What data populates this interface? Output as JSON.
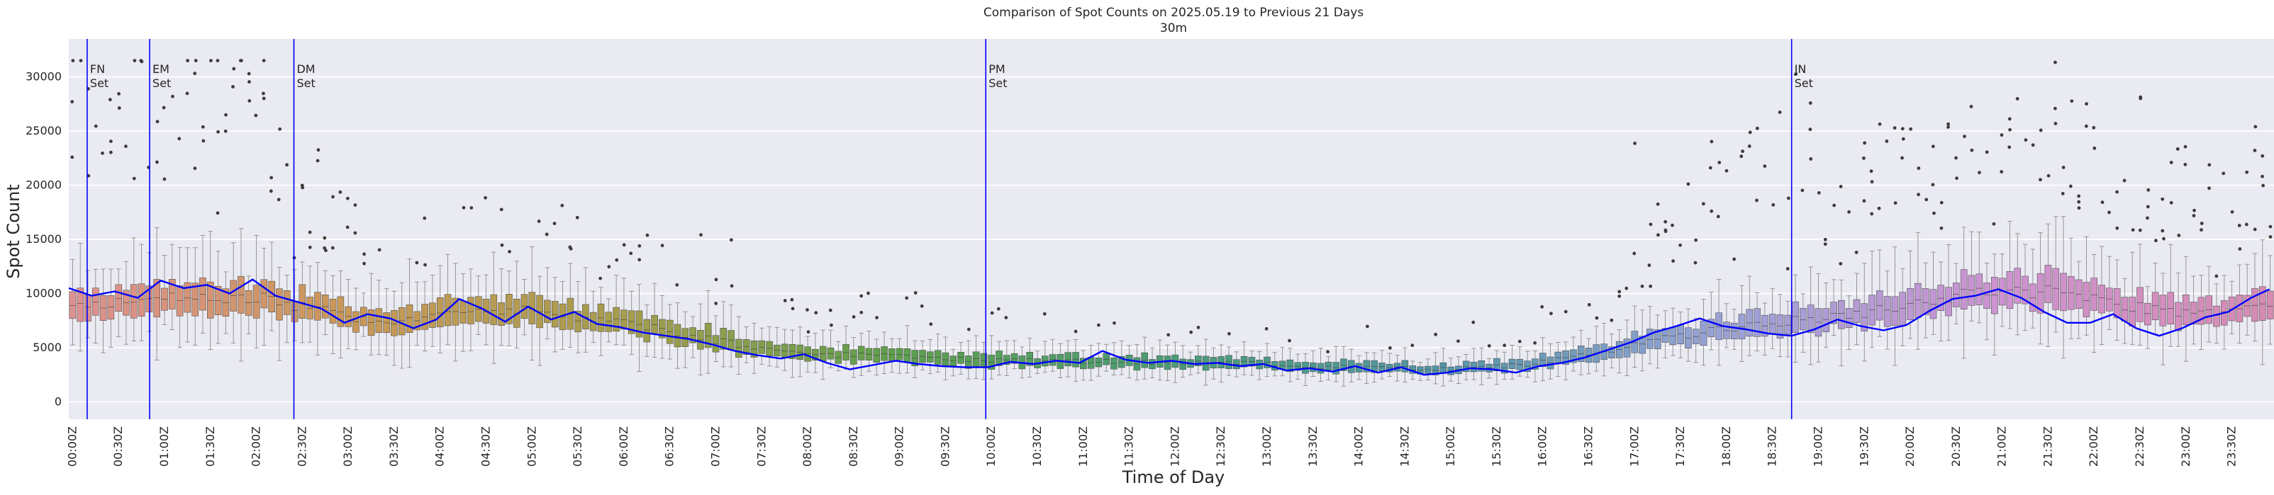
{
  "chart_data": {
    "type": "box",
    "title": "Comparison of Spot Counts on 2025.05.19 to Previous 21 Days",
    "subtitle": "30m",
    "xlabel": "Time of Day",
    "ylabel": "Spot Count",
    "ylim": [
      -1600,
      33500
    ],
    "yticks": [
      0,
      5000,
      10000,
      15000,
      20000,
      25000,
      30000
    ],
    "ytick_labels": [
      "0",
      "5000",
      "10000",
      "15000",
      "20000",
      "25000",
      "30000"
    ],
    "grid": true,
    "bin_minutes": 5,
    "xtick_labels": [
      "00:00Z",
      "00:30Z",
      "01:00Z",
      "01:30Z",
      "02:00Z",
      "02:30Z",
      "03:00Z",
      "03:30Z",
      "04:00Z",
      "04:30Z",
      "05:00Z",
      "05:30Z",
      "06:00Z",
      "06:30Z",
      "07:00Z",
      "07:30Z",
      "08:00Z",
      "08:30Z",
      "09:00Z",
      "09:30Z",
      "10:00Z",
      "10:30Z",
      "11:00Z",
      "11:30Z",
      "12:00Z",
      "12:30Z",
      "13:00Z",
      "13:30Z",
      "14:00Z",
      "14:30Z",
      "15:00Z",
      "15:30Z",
      "16:00Z",
      "16:30Z",
      "17:00Z",
      "17:30Z",
      "18:00Z",
      "18:30Z",
      "19:00Z",
      "19:30Z",
      "20:00Z",
      "20:30Z",
      "21:00Z",
      "21:30Z",
      "22:00Z",
      "22:30Z",
      "23:00Z",
      "23:30Z"
    ],
    "box_median_anchors_hours": [
      0,
      0.5,
      1,
      1.5,
      2,
      2.5,
      3,
      3.5,
      4,
      4.5,
      5,
      5.5,
      6,
      6.5,
      7,
      7.5,
      8,
      8.5,
      9,
      9.5,
      10,
      10.5,
      11,
      11.5,
      12,
      12.5,
      13,
      13.5,
      14,
      14.5,
      15,
      15.5,
      16,
      16.5,
      17,
      17.5,
      18,
      18.5,
      19,
      19.5,
      20,
      20.5,
      21,
      21.5,
      22,
      22.5,
      23,
      23.5,
      24
    ],
    "box_median_anchors": [
      8700,
      9000,
      9600,
      9600,
      9700,
      8800,
      8000,
      7500,
      7800,
      8200,
      8400,
      8000,
      7300,
      6600,
      5700,
      5000,
      4500,
      4300,
      4200,
      4000,
      3900,
      3800,
      3700,
      3700,
      3700,
      3600,
      3500,
      3300,
      3200,
      3100,
      3000,
      3200,
      3600,
      4400,
      5200,
      6000,
      6800,
      7300,
      7600,
      8100,
      9000,
      9800,
      10000,
      10200,
      9600,
      8800,
      8100,
      8600,
      9000
    ],
    "series": [
      {
        "name": "2025.05.19",
        "color": "#0000ff",
        "x_hours": [
          0,
          0.25,
          0.5,
          0.75,
          1,
          1.25,
          1.5,
          1.75,
          2,
          2.25,
          2.5,
          2.75,
          3,
          3.25,
          3.5,
          3.75,
          4,
          4.25,
          4.5,
          4.75,
          5,
          5.25,
          5.5,
          5.75,
          6,
          6.25,
          6.5,
          6.75,
          7,
          7.25,
          7.5,
          7.75,
          8,
          8.25,
          8.5,
          8.75,
          9,
          9.25,
          9.5,
          9.75,
          10,
          10.25,
          10.5,
          10.75,
          11,
          11.25,
          11.5,
          11.75,
          12,
          12.25,
          12.5,
          12.75,
          13,
          13.25,
          13.5,
          13.75,
          14,
          14.25,
          14.5,
          14.75,
          15,
          15.25,
          15.5,
          15.75,
          16,
          16.25,
          16.5,
          16.75,
          17,
          17.25,
          17.5,
          17.75,
          18,
          18.25,
          18.5,
          18.75,
          19,
          19.25,
          19.5,
          19.75,
          20,
          20.25,
          20.5,
          20.75,
          21,
          21.25,
          21.5,
          21.75,
          22,
          22.25,
          22.5,
          22.75,
          23,
          23.25,
          23.5,
          23.75,
          23.95
        ],
        "values": [
          10500,
          9800,
          10200,
          9600,
          11200,
          10500,
          10800,
          10000,
          11300,
          9800,
          9200,
          8600,
          7300,
          8100,
          7700,
          6800,
          7600,
          9500,
          8600,
          7400,
          8800,
          7600,
          8300,
          7200,
          6900,
          6400,
          6100,
          5800,
          5300,
          4700,
          4300,
          4000,
          4400,
          3600,
          3000,
          3400,
          3800,
          3500,
          3300,
          3200,
          3200,
          3700,
          3500,
          3800,
          3600,
          4700,
          3900,
          3600,
          3800,
          3500,
          3600,
          3300,
          3500,
          2900,
          3100,
          2800,
          3300,
          2700,
          3200,
          2500,
          2700,
          3100,
          3000,
          2700,
          3300,
          3600,
          4100,
          4800,
          5500,
          6400,
          7000,
          7700,
          7000,
          6700,
          6300,
          6100,
          6700,
          7600,
          7000,
          6600,
          7100,
          8400,
          9500,
          9800,
          10400,
          9600,
          8300,
          7300,
          7300,
          8100,
          6800,
          6100,
          6800,
          7800,
          8300,
          9600,
          10400
        ]
      }
    ],
    "vlines": [
      {
        "x_hours": 0.2,
        "label_line1": "FN",
        "label_line2": "Set",
        "color": "#0000ff"
      },
      {
        "x_hours": 0.88,
        "label_line1": "EM",
        "label_line2": "Set",
        "color": "#0000ff"
      },
      {
        "x_hours": 2.45,
        "label_line1": "DM",
        "label_line2": "Set",
        "color": "#0000ff"
      },
      {
        "x_hours": 9.98,
        "label_line1": "PM",
        "label_line2": "Set",
        "color": "#0000ff"
      },
      {
        "x_hours": 18.75,
        "label_line1": "JN",
        "label_line2": "Set",
        "color": "#0000ff"
      }
    ],
    "palette_anchors_hours": [
      0,
      3,
      6,
      9,
      12,
      15,
      18,
      21,
      24
    ],
    "palette_anchors": [
      "#de9192",
      "#c99858",
      "#a69d4e",
      "#5e9f4d",
      "#4a9c76",
      "#5396a8",
      "#9aa2d6",
      "#cd93d0",
      "#d68bb2"
    ],
    "colors": {
      "background": "#eaeaf2",
      "grid": "#ffffff",
      "box_edge": "#3f3f3f",
      "whisker": "#8c8c8c",
      "outlier": "#3d3d3d"
    }
  }
}
